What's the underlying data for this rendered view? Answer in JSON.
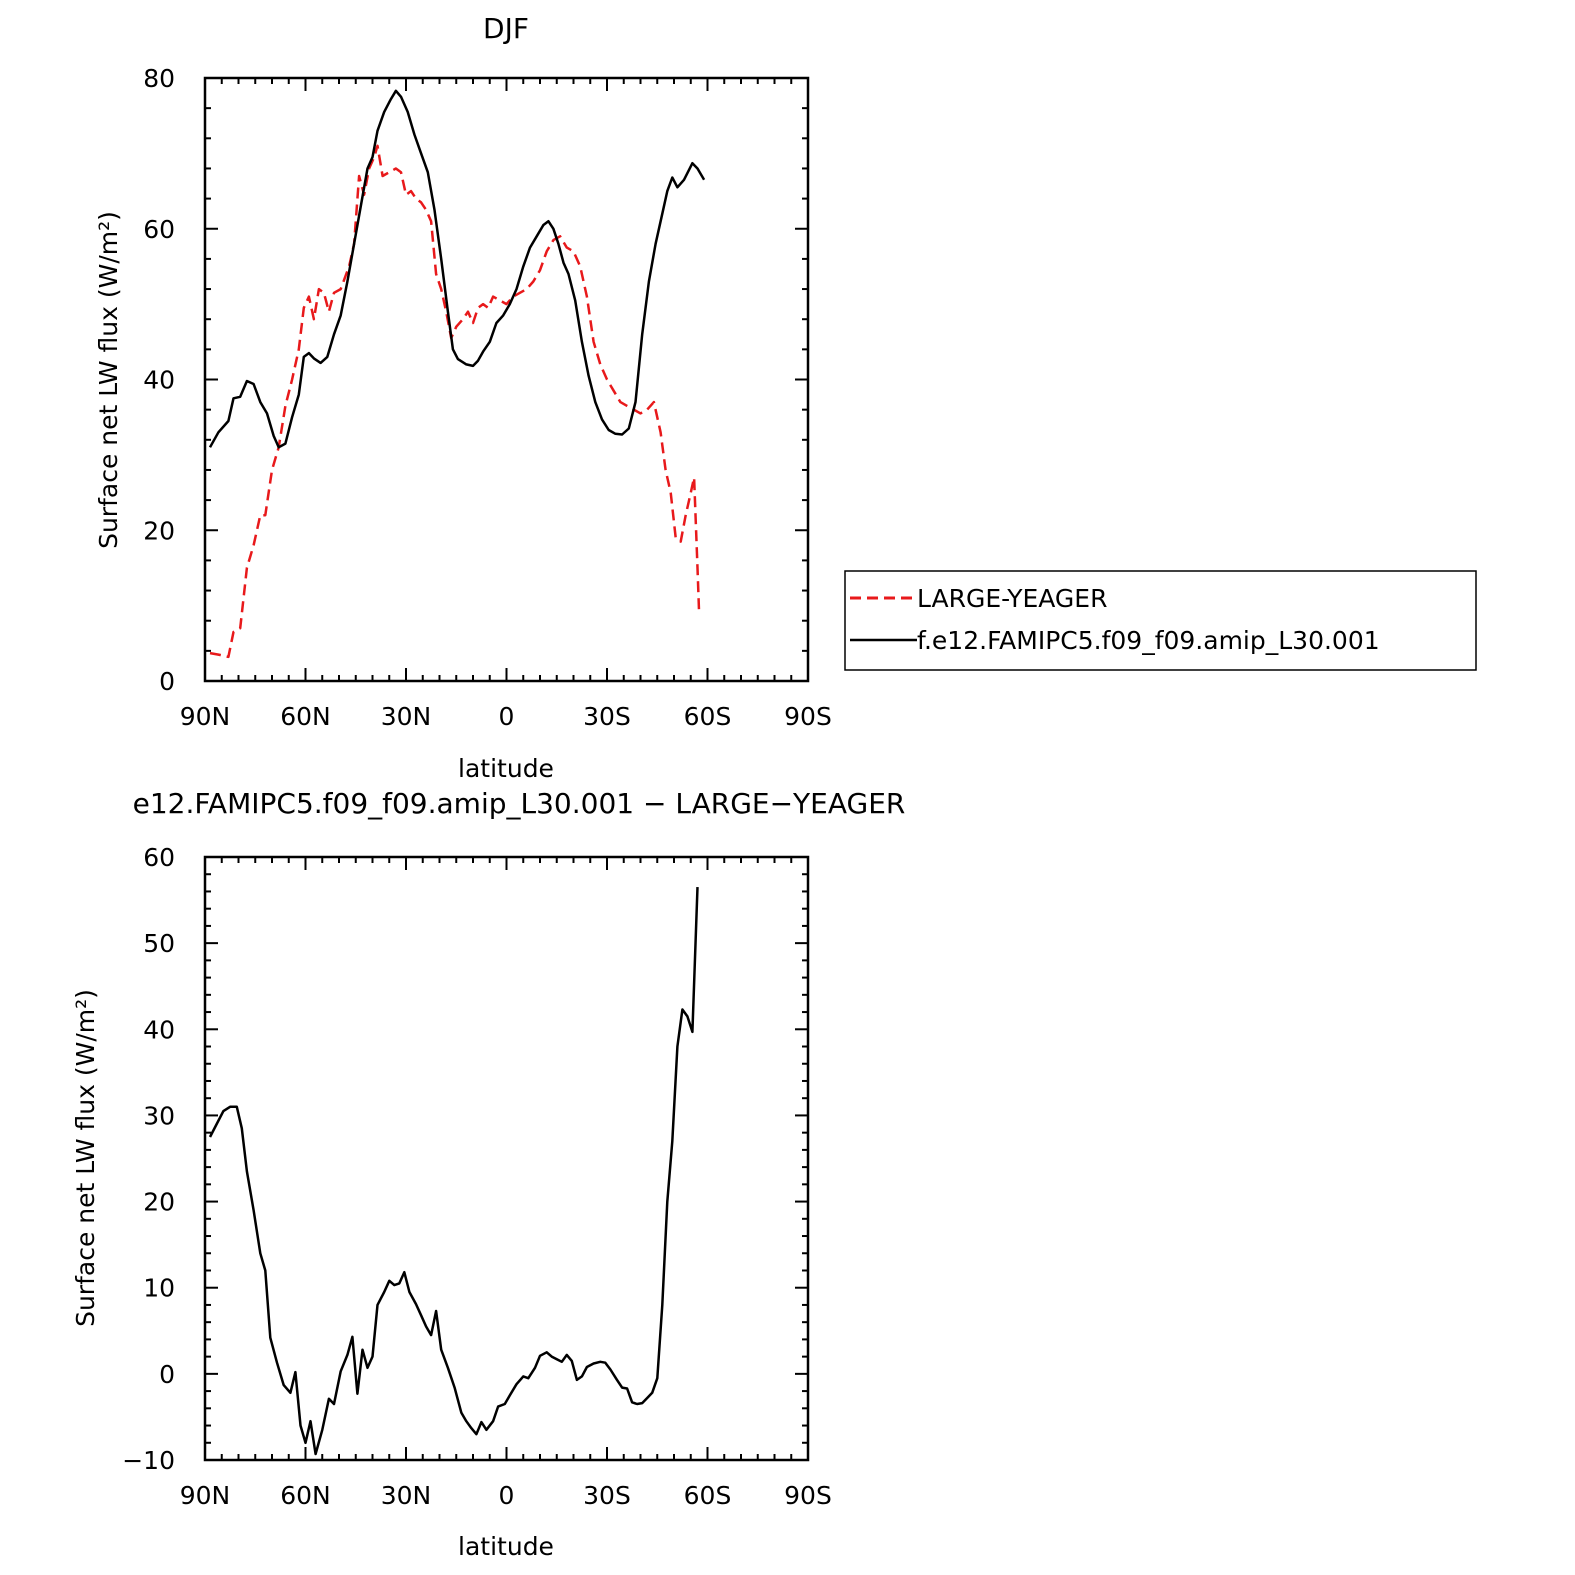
{
  "chart_data": [
    {
      "type": "line",
      "title": "DJF",
      "xlabel": "latitude",
      "ylabel": "Surface net LW flux (W/m²)",
      "xlim": [
        90,
        -90
      ],
      "ylim": [
        0,
        80
      ],
      "xticks": [
        {
          "value": 90,
          "label": "90N"
        },
        {
          "value": 60,
          "label": "60N"
        },
        {
          "value": 30,
          "label": "30N"
        },
        {
          "value": 0,
          "label": "0"
        },
        {
          "value": -30,
          "label": "30S"
        },
        {
          "value": -60,
          "label": "60S"
        },
        {
          "value": -90,
          "label": "90S"
        }
      ],
      "yticks": [
        0,
        20,
        40,
        60,
        80
      ],
      "legend_position": "outside right",
      "series": [
        {
          "name": "LARGE-YEAGER",
          "color": "#e8191b",
          "dash": true,
          "points": [
            [
              88.5,
              3.7
            ],
            [
              86,
              3.5
            ],
            [
              83,
              3.2
            ],
            [
              81.5,
              6.5
            ],
            [
              79.5,
              7
            ],
            [
              77.5,
              15
            ],
            [
              75.5,
              18
            ],
            [
              73.5,
              22
            ],
            [
              72,
              22
            ],
            [
              70,
              28
            ],
            [
              68,
              31
            ],
            [
              66,
              36.5
            ],
            [
              64,
              40
            ],
            [
              62,
              44
            ],
            [
              60.5,
              49.5
            ],
            [
              59,
              51
            ],
            [
              57.5,
              48
            ],
            [
              56,
              52
            ],
            [
              54.5,
              51.5
            ],
            [
              53,
              49
            ],
            [
              51.5,
              51.5
            ],
            [
              49.5,
              52
            ],
            [
              47,
              55
            ],
            [
              45.5,
              58
            ],
            [
              44,
              67
            ],
            [
              42.5,
              64.5
            ],
            [
              41,
              68
            ],
            [
              39.5,
              69.5
            ],
            [
              38.5,
              71
            ],
            [
              37,
              67
            ],
            [
              35,
              67.5
            ],
            [
              33,
              68
            ],
            [
              31.5,
              67.5
            ],
            [
              30,
              64.5
            ],
            [
              28.5,
              65
            ],
            [
              27,
              64
            ],
            [
              25.5,
              63.5
            ],
            [
              24,
              62.5
            ],
            [
              22.5,
              61
            ],
            [
              21,
              54
            ],
            [
              19.5,
              52
            ],
            [
              18,
              49
            ],
            [
              16.5,
              45.5
            ],
            [
              15,
              47
            ],
            [
              13,
              48
            ],
            [
              11.5,
              49
            ],
            [
              10,
              47.5
            ],
            [
              8.5,
              49.5
            ],
            [
              7,
              50
            ],
            [
              5.5,
              49.5
            ],
            [
              4,
              51
            ],
            [
              2,
              50.5
            ],
            [
              0,
              50
            ],
            [
              -2,
              51
            ],
            [
              -4,
              51.5
            ],
            [
              -6,
              52
            ],
            [
              -8,
              53
            ],
            [
              -10,
              54.5
            ],
            [
              -12,
              57
            ],
            [
              -14,
              58.5
            ],
            [
              -16,
              59
            ],
            [
              -18,
              57.5
            ],
            [
              -20,
              57
            ],
            [
              -22,
              55
            ],
            [
              -24,
              51
            ],
            [
              -26,
              45
            ],
            [
              -28,
              42
            ],
            [
              -30,
              40
            ],
            [
              -32,
              38.5
            ],
            [
              -34,
              37
            ],
            [
              -36,
              36.5
            ],
            [
              -38,
              36
            ],
            [
              -40,
              35.5
            ],
            [
              -42,
              36
            ],
            [
              -44,
              37
            ],
            [
              -46,
              33
            ],
            [
              -47.5,
              28
            ],
            [
              -49,
              25
            ],
            [
              -50.5,
              19
            ],
            [
              -52,
              18.5
            ],
            [
              -53.5,
              22
            ],
            [
              -55,
              25
            ],
            [
              -56,
              27
            ],
            [
              -57,
              15
            ],
            [
              -57.5,
              9
            ]
          ]
        },
        {
          "name": "f.e12.FAMIPC5.f09_f09.amip_L30.001",
          "color": "#000000",
          "dash": false,
          "points": [
            [
              88.5,
              31
            ],
            [
              86,
              33
            ],
            [
              83,
              34.5
            ],
            [
              81.5,
              37.5
            ],
            [
              79.5,
              37.7
            ],
            [
              77.5,
              39.8
            ],
            [
              75.5,
              39.4
            ],
            [
              73.5,
              37
            ],
            [
              71.5,
              35.5
            ],
            [
              69.5,
              32.5
            ],
            [
              68,
              31
            ],
            [
              66,
              31.5
            ],
            [
              64,
              35
            ],
            [
              62,
              38
            ],
            [
              60.5,
              43
            ],
            [
              59,
              43.5
            ],
            [
              57.5,
              42.8
            ],
            [
              55.5,
              42.2
            ],
            [
              53.5,
              43
            ],
            [
              51.5,
              46
            ],
            [
              49.5,
              48.5
            ],
            [
              47.5,
              53
            ],
            [
              45.5,
              58
            ],
            [
              43.5,
              63
            ],
            [
              41.5,
              68
            ],
            [
              40,
              69.5
            ],
            [
              38.5,
              73
            ],
            [
              36.5,
              75.5
            ],
            [
              34.5,
              77.2
            ],
            [
              33,
              78.3
            ],
            [
              31.5,
              77.5
            ],
            [
              29.5,
              75.5
            ],
            [
              27.5,
              72.5
            ],
            [
              25.5,
              70
            ],
            [
              23.5,
              67.5
            ],
            [
              21.5,
              62.5
            ],
            [
              19.5,
              56
            ],
            [
              17.5,
              49
            ],
            [
              16,
              44
            ],
            [
              14.5,
              42.7
            ],
            [
              12,
              42
            ],
            [
              10,
              41.8
            ],
            [
              8.5,
              42.5
            ],
            [
              7,
              43.7
            ],
            [
              5,
              45
            ],
            [
              3,
              47.5
            ],
            [
              1,
              48.5
            ],
            [
              -1,
              50
            ],
            [
              -3,
              52
            ],
            [
              -5,
              55
            ],
            [
              -7,
              57.5
            ],
            [
              -9,
              59
            ],
            [
              -11,
              60.5
            ],
            [
              -12.5,
              61
            ],
            [
              -14,
              60
            ],
            [
              -15.5,
              58
            ],
            [
              -17,
              55.5
            ],
            [
              -18.5,
              54
            ],
            [
              -20.5,
              50.5
            ],
            [
              -22.5,
              45
            ],
            [
              -24.5,
              40.5
            ],
            [
              -26.5,
              37
            ],
            [
              -28.5,
              34.7
            ],
            [
              -30.5,
              33.3
            ],
            [
              -32.5,
              32.8
            ],
            [
              -34.5,
              32.7
            ],
            [
              -36.5,
              33.5
            ],
            [
              -38.5,
              37
            ],
            [
              -40.5,
              46
            ],
            [
              -42.5,
              53
            ],
            [
              -44.5,
              58
            ],
            [
              -46.5,
              62
            ],
            [
              -48,
              65
            ],
            [
              -49.5,
              66.8
            ],
            [
              -51,
              65.5
            ],
            [
              -53,
              66.5
            ],
            [
              -55.5,
              68.7
            ],
            [
              -57,
              68
            ],
            [
              -59,
              66.5
            ]
          ]
        }
      ]
    },
    {
      "type": "line",
      "title": "e12.FAMIPC5.f09_f09.amip_L30.001 − LARGE−YEAGER",
      "xlabel": "latitude",
      "ylabel": "Surface net LW flux (W/m²)",
      "xlim": [
        90,
        -90
      ],
      "ylim": [
        -10,
        60
      ],
      "xticks": [
        {
          "value": 90,
          "label": "90N"
        },
        {
          "value": 60,
          "label": "60N"
        },
        {
          "value": 30,
          "label": "30N"
        },
        {
          "value": 0,
          "label": "0"
        },
        {
          "value": -30,
          "label": "30S"
        },
        {
          "value": -60,
          "label": "60S"
        },
        {
          "value": -90,
          "label": "90S"
        }
      ],
      "yticks": [
        -10,
        0,
        10,
        20,
        30,
        40,
        50,
        60
      ],
      "series": [
        {
          "color": "#000000",
          "dash": false,
          "points": [
            [
              88.5,
              27.5
            ],
            [
              86.5,
              29
            ],
            [
              84.5,
              30.5
            ],
            [
              82.5,
              31
            ],
            [
              80.5,
              31
            ],
            [
              79,
              28.5
            ],
            [
              77.5,
              23.5
            ],
            [
              75.5,
              19
            ],
            [
              73.5,
              14
            ],
            [
              72,
              12
            ],
            [
              70.5,
              4.2
            ],
            [
              68.5,
              1.3
            ],
            [
              66.5,
              -1.3
            ],
            [
              64.5,
              -2.2
            ],
            [
              63,
              0.2
            ],
            [
              61.5,
              -6
            ],
            [
              60,
              -8
            ],
            [
              58.5,
              -5.5
            ],
            [
              57,
              -9.3
            ],
            [
              55,
              -6.5
            ],
            [
              53,
              -2.9
            ],
            [
              51.5,
              -3.5
            ],
            [
              49.5,
              0.3
            ],
            [
              47.5,
              2.2
            ],
            [
              46,
              4.3
            ],
            [
              44.5,
              -2.3
            ],
            [
              43,
              2.8
            ],
            [
              41.5,
              0.7
            ],
            [
              40,
              2
            ],
            [
              38.5,
              8
            ],
            [
              36.5,
              9.5
            ],
            [
              35,
              10.8
            ],
            [
              33.5,
              10.3
            ],
            [
              32,
              10.5
            ],
            [
              30.5,
              11.8
            ],
            [
              29,
              9.5
            ],
            [
              27,
              8.1
            ],
            [
              25.5,
              6.8
            ],
            [
              24,
              5.5
            ],
            [
              22.5,
              4.5
            ],
            [
              21,
              7.3
            ],
            [
              19.5,
              2.8
            ],
            [
              17.5,
              0.7
            ],
            [
              15.5,
              -1.6
            ],
            [
              13.5,
              -4.5
            ],
            [
              12,
              -5.5
            ],
            [
              10.5,
              -6.3
            ],
            [
              9,
              -7
            ],
            [
              7.5,
              -5.6
            ],
            [
              6,
              -6.5
            ],
            [
              4,
              -5.5
            ],
            [
              2.5,
              -3.8
            ],
            [
              0.5,
              -3.5
            ],
            [
              -1,
              -2.5
            ],
            [
              -3,
              -1.2
            ],
            [
              -5,
              -0.3
            ],
            [
              -6.5,
              -0.5
            ],
            [
              -8.5,
              0.7
            ],
            [
              -10,
              2.1
            ],
            [
              -12,
              2.5
            ],
            [
              -13.5,
              2
            ],
            [
              -15,
              1.7
            ],
            [
              -16.5,
              1.4
            ],
            [
              -18,
              2.2
            ],
            [
              -19.5,
              1.5
            ],
            [
              -21,
              -0.7
            ],
            [
              -22.5,
              -0.3
            ],
            [
              -24,
              0.8
            ],
            [
              -26,
              1.2
            ],
            [
              -28,
              1.4
            ],
            [
              -29.5,
              1.3
            ],
            [
              -31,
              0.5
            ],
            [
              -33,
              -0.7
            ],
            [
              -34.5,
              -1.6
            ],
            [
              -36,
              -1.7
            ],
            [
              -37.5,
              -3.3
            ],
            [
              -39,
              -3.5
            ],
            [
              -40.5,
              -3.4
            ],
            [
              -42,
              -2.8
            ],
            [
              -43.5,
              -2.2
            ],
            [
              -45,
              -0.5
            ],
            [
              -46.5,
              8
            ],
            [
              -48,
              20
            ],
            [
              -49.5,
              27
            ],
            [
              -51,
              38
            ],
            [
              -52.5,
              42.3
            ],
            [
              -54,
              41.5
            ],
            [
              -55.5,
              39.7
            ],
            [
              -57,
              56.5
            ]
          ]
        }
      ]
    }
  ]
}
